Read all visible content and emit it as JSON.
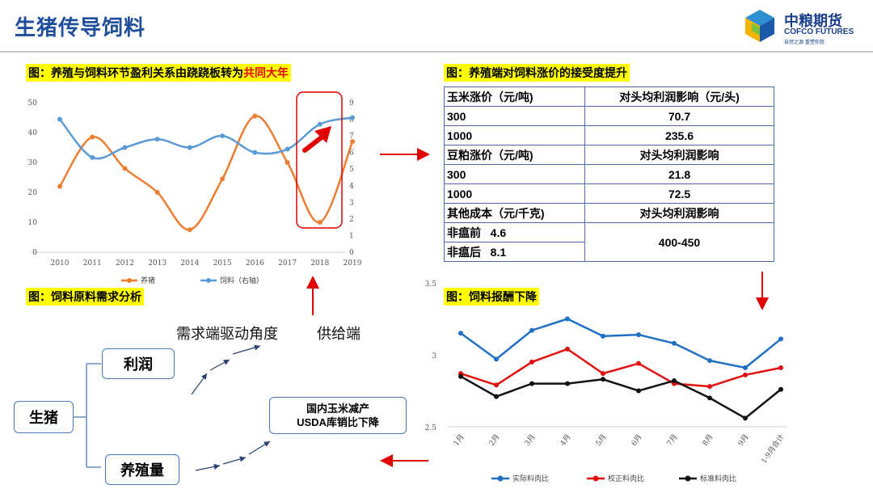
{
  "header": {
    "title": "生猪传导饲料",
    "logo_cn": "中粮期货",
    "logo_en": "COFCO FUTURES",
    "logo_tagline": "自然之源 重塑你我"
  },
  "colors": {
    "title_blue": "#1f4e9c",
    "orange": "#ed7d31",
    "blue": "#5b9bd5",
    "red": "#e00000",
    "highlight": "#ffff00"
  },
  "panel1": {
    "title_prefix": "图：养殖与饲料环节盈利关系由跷跷板转为",
    "title_highlight": "共同大年"
  },
  "panel2": {
    "title": "图：养殖端对饲料涨价的接受度提升",
    "table": [
      [
        "玉米涨价（元/吨)",
        "对头均利润影响（元/头)"
      ],
      [
        "300",
        "70.7"
      ],
      [
        "1000",
        "235.6"
      ],
      [
        "豆粕涨价（元/吨)",
        "对头均利润影响"
      ],
      [
        "300",
        "21.8"
      ],
      [
        "1000",
        "72.5"
      ],
      [
        "其他成本（元/千克)",
        "对头均利润影响"
      ]
    ],
    "last_rows": {
      "a": "非瘟前   4.6",
      "b": "非瘟后   8.1",
      "value": "400-450"
    }
  },
  "panel3": {
    "title": "图：饲料原料需求分析",
    "demand_label": "需求端驱动角度",
    "supply_label": "供给端",
    "node_pig": "生猪",
    "node_profit": "利润",
    "node_volume": "养殖量",
    "node_supply_line1": "国内玉米减产",
    "node_supply_line2": "USDA库销比下降"
  },
  "panel4": {
    "title": "图：饲料报酬下降"
  },
  "chart_data": [
    {
      "type": "line",
      "title": "",
      "categories": [
        "2010",
        "2011",
        "2012",
        "2013",
        "2014",
        "2015",
        "2016",
        "2017",
        "2018",
        "2019"
      ],
      "ylim": [
        0,
        50
      ],
      "y_ticks": [
        "0",
        "10",
        "20",
        "30",
        "40",
        "50"
      ],
      "y2lim": [
        0,
        9
      ],
      "y2_ticks": [
        "0",
        "1",
        "2",
        "3",
        "4",
        "5",
        "6",
        "7",
        "8",
        "9"
      ],
      "series": [
        {
          "name": "养猪",
          "axis": "left",
          "color": "#ed7d31",
          "values": [
            22,
            38.5,
            28,
            20,
            7.5,
            24.5,
            45.5,
            30,
            10,
            37
          ]
        },
        {
          "name": "饲料（右轴）",
          "axis": "right",
          "color": "#5b9bd5",
          "values": [
            8,
            5.7,
            6.3,
            6.8,
            6.3,
            7.0,
            6.0,
            6.2,
            7.7,
            8.1
          ]
        }
      ],
      "legend": "bottom",
      "grid": false
    },
    {
      "type": "line",
      "title": "",
      "categories": [
        "1月",
        "2月",
        "3月",
        "4月",
        "5月",
        "6月",
        "7月",
        "8月",
        "9月",
        "1-9月合计"
      ],
      "ylim": [
        2.5,
        3.5
      ],
      "y_ticks": [
        "2.5",
        "3",
        "3.5"
      ],
      "series": [
        {
          "name": "实际料肉比",
          "color": "#1f6fc4",
          "values": [
            3.15,
            2.97,
            3.17,
            3.25,
            3.13,
            3.14,
            3.08,
            2.96,
            2.91,
            3.11
          ]
        },
        {
          "name": "校正料肉比",
          "color": "#e01010",
          "values": [
            2.87,
            2.79,
            2.95,
            3.04,
            2.87,
            2.94,
            2.8,
            2.78,
            2.86,
            2.91
          ]
        },
        {
          "name": "标准料肉比",
          "color": "#111111",
          "values": [
            2.85,
            2.71,
            2.8,
            2.8,
            2.83,
            2.75,
            2.82,
            2.7,
            2.56,
            2.76
          ]
        }
      ],
      "legend": "bottom",
      "grid": false
    }
  ]
}
